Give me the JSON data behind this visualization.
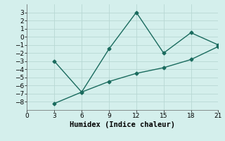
{
  "line1_x": [
    3,
    6,
    9,
    12,
    15,
    18,
    21
  ],
  "line1_y": [
    -3,
    -6.8,
    -1.5,
    3,
    -2,
    0.5,
    -1
  ],
  "line2_x": [
    3,
    6,
    9,
    12,
    15,
    18,
    21
  ],
  "line2_y": [
    -8.2,
    -6.8,
    -5.5,
    -4.5,
    -3.8,
    -2.8,
    -1.2
  ],
  "line_color": "#1a6b5e",
  "marker": "D",
  "markersize": 2.5,
  "xlabel": "Humidex (Indice chaleur)",
  "xlim": [
    0,
    21
  ],
  "ylim": [
    -9,
    4
  ],
  "xticks": [
    0,
    3,
    6,
    9,
    12,
    15,
    18,
    21
  ],
  "yticks": [
    -8,
    -7,
    -6,
    -5,
    -4,
    -3,
    -2,
    -1,
    0,
    1,
    2,
    3
  ],
  "background_color": "#d4efec",
  "grid_color": "#b8d8d4",
  "tick_fontsize": 6.5,
  "xlabel_fontsize": 7.5,
  "linewidth": 1.0
}
